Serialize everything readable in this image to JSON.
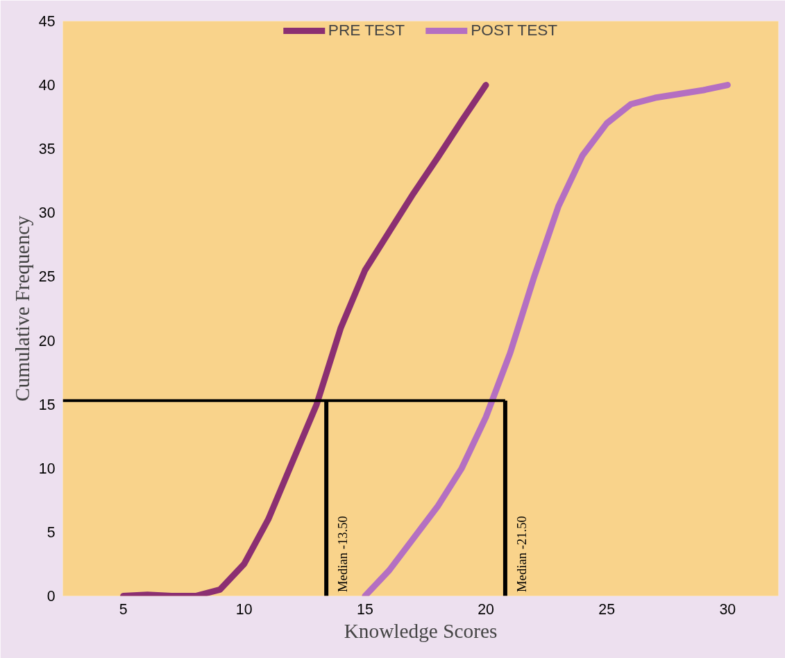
{
  "chart_data": {
    "type": "line",
    "xlabel": "Knowledge Scores",
    "ylabel": "Cumulative Frequency",
    "xlim": [
      2.5,
      32.1
    ],
    "xticks": [
      5,
      10,
      15,
      20,
      25,
      30
    ],
    "ylim": [
      0,
      45
    ],
    "yticks": [
      0,
      5,
      10,
      15,
      20,
      25,
      30,
      35,
      40,
      45
    ],
    "grid": false,
    "legend": "top",
    "line_style": "solid",
    "marker": "none",
    "series": [
      {
        "name": "PRE TEST",
        "color": "#8b2f72",
        "x": [
          5,
          6,
          7,
          8,
          9,
          10,
          11,
          12,
          13,
          14,
          15,
          16,
          17,
          18,
          19,
          20
        ],
        "values": [
          0,
          0.1,
          0,
          0,
          0.5,
          2.5,
          6,
          10.5,
          15,
          21,
          25.5,
          28.5,
          31.5,
          34.3,
          37.2,
          40
        ]
      },
      {
        "name": "POST TEST",
        "color": "#b46fc2",
        "x": [
          15,
          16,
          17,
          18,
          19,
          20,
          21,
          22,
          23,
          24,
          25,
          26,
          27,
          28,
          29,
          30
        ],
        "values": [
          0,
          2,
          4.5,
          7,
          10,
          14,
          19,
          25,
          30.5,
          34.5,
          37,
          38.5,
          39,
          39.3,
          39.6,
          40
        ]
      }
    ],
    "ref_lines": [
      {
        "axis": "y",
        "value": 15.3,
        "color": "#000000"
      },
      {
        "axis": "x",
        "value": 13.4,
        "label": "Median -13.50",
        "color": "#000000"
      },
      {
        "axis": "x",
        "value": 20.8,
        "label": "Median -21.50",
        "color": "#000000"
      }
    ]
  }
}
